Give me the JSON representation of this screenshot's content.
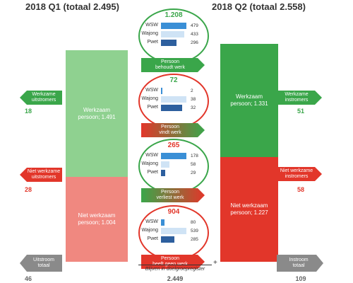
{
  "colors": {
    "green": "#3aa64a",
    "light_green": "#8fd190",
    "red": "#e2362a",
    "light_red": "#f08880",
    "grey": "#8a8a8a",
    "bar_dark": "#2d5f9e",
    "bar_mid": "#3a8fd6",
    "bar_light": "#cfe3f5"
  },
  "header": {
    "q1_title": "2018 Q1 (totaal 2.495)",
    "q2_title": "2018 Q2 (totaal 2.558)"
  },
  "q1": {
    "working_label": "Werkzaam",
    "working_value": "persoon;  1.491",
    "not_working_label": "Niet werkzaam",
    "not_working_value": "persoon;  1.004"
  },
  "q2": {
    "working_label": "Werkzaam",
    "working_value": "persoon;  1.331",
    "not_working_label": "Niet werkzaam",
    "not_working_value": "persoon;  1.227"
  },
  "left_flows": {
    "out_working_l1": "Werkzame",
    "out_working_l2": "uitstromers",
    "out_working_value": "18",
    "out_not_working_l1": "Niet werkzame",
    "out_not_working_l2": "uitstromers",
    "out_not_working_value": "28",
    "out_total_l1": "Uitstroom",
    "out_total_l2": "totaal",
    "out_total_value": "46"
  },
  "right_flows": {
    "in_working_l1": "Werkzame",
    "in_working_l2": "instromers",
    "in_working_value": "51",
    "in_not_working_l1": "Niet werkzame",
    "in_not_working_l2": "instromers",
    "in_not_working_value": "58",
    "in_total_l1": "Instroom",
    "in_total_l2": "totaal",
    "in_total_value": "109"
  },
  "transitions": [
    {
      "total": "1.208",
      "rows": [
        {
          "label": "WSW",
          "value": "479",
          "amount": 479
        },
        {
          "label": "Wajong",
          "value": "433",
          "amount": 433
        },
        {
          "label": "Pwet",
          "value": "296",
          "amount": 296
        }
      ],
      "banner_l1": "Persoon",
      "banner_l2": "behoudt werk"
    },
    {
      "total": "72",
      "rows": [
        {
          "label": "WSW",
          "value": "2",
          "amount": 2
        },
        {
          "label": "Wajong",
          "value": "38",
          "amount": 38
        },
        {
          "label": "Pwet",
          "value": "32",
          "amount": 32
        }
      ],
      "banner_l1": "Persoon",
      "banner_l2": "vindt werk"
    },
    {
      "total": "265",
      "rows": [
        {
          "label": "WSW",
          "value": "178",
          "amount": 178
        },
        {
          "label": "Wajong",
          "value": "58",
          "amount": 58
        },
        {
          "label": "Pwet",
          "value": "29",
          "amount": 29
        }
      ],
      "banner_l1": "Persoon",
      "banner_l2": "verliest werk"
    },
    {
      "total": "904",
      "rows": [
        {
          "label": "WSW",
          "value": "80",
          "amount": 80
        },
        {
          "label": "Wajong",
          "value": "539",
          "amount": 539
        },
        {
          "label": "Pwet",
          "value": "285",
          "amount": 285
        }
      ],
      "banner_l1": "Persoon",
      "banner_l2": "heeft geen werk"
    }
  ],
  "footer": {
    "stay_label": "Blijven in doelgroepregister",
    "stay_value": "2.449",
    "plus": "+"
  }
}
